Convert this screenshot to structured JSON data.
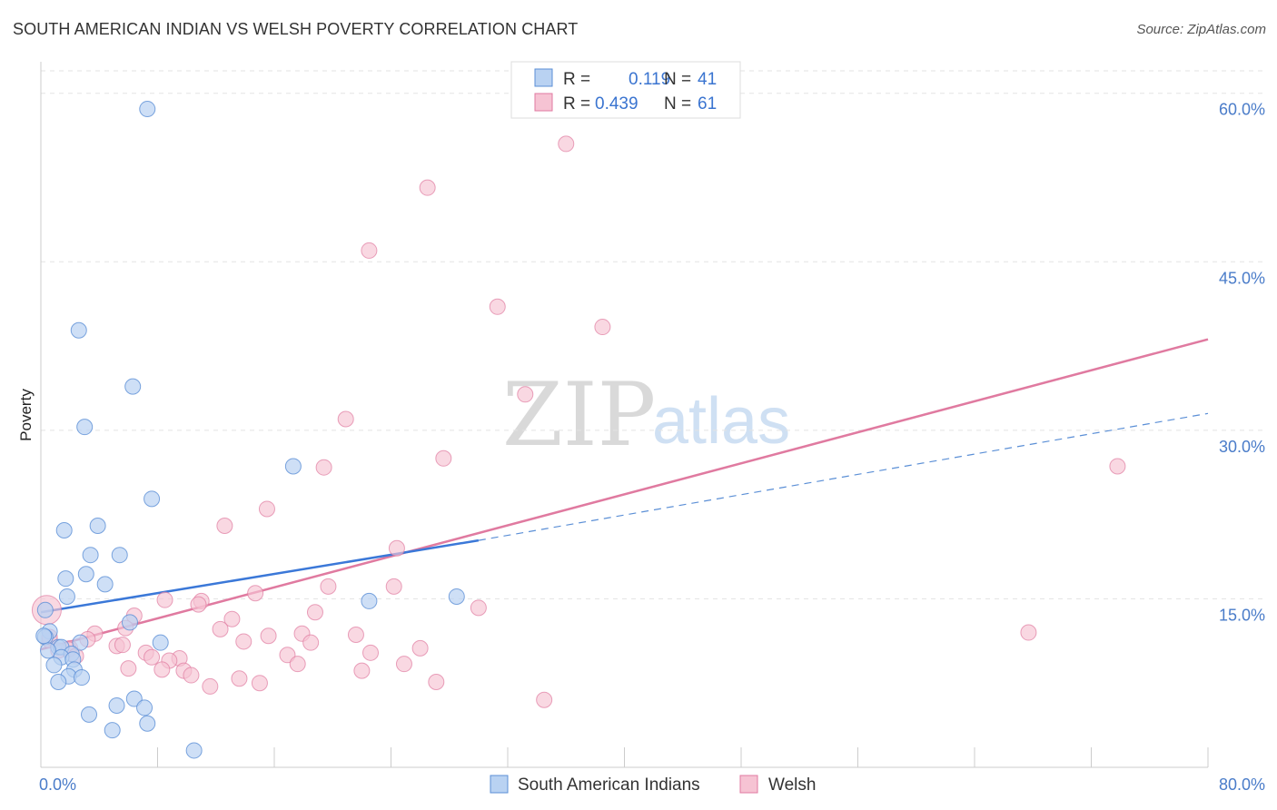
{
  "header": {
    "title": "SOUTH AMERICAN INDIAN VS WELSH POVERTY CORRELATION CHART",
    "source": "Source: ZipAtlas.com"
  },
  "watermark": {
    "zip": "ZIP",
    "atlas": "atlas"
  },
  "legend": {
    "row1": {
      "r_label": "R =",
      "r_value": "0.119",
      "n_label": "N =",
      "n_value": "41"
    },
    "row2": {
      "r_label": "R =",
      "r_value": "0.439",
      "n_label": "N =",
      "n_value": "61"
    }
  },
  "bottom_legend": {
    "series1": "South American Indians",
    "series2": "Welsh"
  },
  "chart_data": {
    "type": "scatter",
    "title": "SOUTH AMERICAN INDIAN VS WELSH POVERTY CORRELATION CHART",
    "xlabel": "",
    "ylabel": "Poverty",
    "xlim": [
      0,
      80
    ],
    "ylim": [
      0,
      62
    ],
    "x_tick_labels": [
      "0.0%",
      "80.0%"
    ],
    "y_ticks": [
      15,
      30,
      45,
      60
    ],
    "y_tick_labels": [
      "15.0%",
      "30.0%",
      "45.0%",
      "60.0%"
    ],
    "grid": true,
    "colors": {
      "blue": "#5b8fd6",
      "pink": "#e07aa0",
      "blue_fill": "#b9d2f2",
      "pink_fill": "#f6c3d3"
    },
    "series": [
      {
        "name": "South American Indians",
        "r": 0.119,
        "n": 41,
        "points": [
          [
            7.3,
            58.6
          ],
          [
            2.6,
            38.9
          ],
          [
            6.3,
            33.9
          ],
          [
            3.0,
            30.3
          ],
          [
            17.3,
            26.8
          ],
          [
            7.6,
            23.9
          ],
          [
            3.9,
            21.5
          ],
          [
            1.6,
            21.1
          ],
          [
            3.4,
            18.9
          ],
          [
            5.4,
            18.9
          ],
          [
            1.7,
            16.8
          ],
          [
            3.1,
            17.2
          ],
          [
            4.4,
            16.3
          ],
          [
            1.8,
            15.2
          ],
          [
            28.5,
            15.2
          ],
          [
            22.5,
            14.8
          ],
          [
            0.3,
            14.0
          ],
          [
            6.1,
            12.9
          ],
          [
            0.6,
            12.1
          ],
          [
            0.3,
            11.6
          ],
          [
            8.2,
            11.1
          ],
          [
            2.7,
            11.1
          ],
          [
            1.2,
            10.7
          ],
          [
            1.4,
            10.7
          ],
          [
            0.5,
            10.4
          ],
          [
            2.1,
            10.1
          ],
          [
            1.4,
            9.8
          ],
          [
            2.2,
            9.6
          ],
          [
            0.9,
            9.1
          ],
          [
            2.3,
            8.7
          ],
          [
            1.9,
            8.1
          ],
          [
            2.8,
            8.0
          ],
          [
            1.2,
            7.6
          ],
          [
            6.4,
            6.1
          ],
          [
            5.2,
            5.5
          ],
          [
            7.1,
            5.3
          ],
          [
            3.3,
            4.7
          ],
          [
            7.3,
            3.9
          ],
          [
            4.9,
            3.3
          ],
          [
            10.5,
            1.5
          ],
          [
            0.2,
            11.7
          ]
        ],
        "trend": {
          "solid": [
            [
              0,
              13.8
            ],
            [
              30,
              20.2
            ]
          ],
          "dashed": [
            [
              30,
              20.2
            ],
            [
              80,
              31.5
            ]
          ]
        }
      },
      {
        "name": "Welsh",
        "r": 0.439,
        "n": 61,
        "points": [
          [
            36.0,
            55.5
          ],
          [
            26.5,
            51.6
          ],
          [
            22.5,
            46.0
          ],
          [
            31.3,
            41.0
          ],
          [
            38.5,
            39.2
          ],
          [
            33.2,
            33.2
          ],
          [
            20.9,
            31.0
          ],
          [
            27.6,
            27.5
          ],
          [
            19.4,
            26.7
          ],
          [
            73.8,
            26.8
          ],
          [
            15.5,
            23.0
          ],
          [
            12.6,
            21.5
          ],
          [
            24.4,
            19.5
          ],
          [
            19.7,
            16.1
          ],
          [
            24.2,
            16.1
          ],
          [
            14.7,
            15.5
          ],
          [
            8.5,
            14.9
          ],
          [
            11.0,
            14.8
          ],
          [
            10.8,
            14.5
          ],
          [
            30.0,
            14.2
          ],
          [
            18.8,
            13.8
          ],
          [
            6.4,
            13.5
          ],
          [
            13.1,
            13.2
          ],
          [
            12.3,
            12.3
          ],
          [
            67.7,
            12.0
          ],
          [
            3.7,
            11.9
          ],
          [
            5.8,
            12.4
          ],
          [
            17.9,
            11.9
          ],
          [
            21.6,
            11.8
          ],
          [
            15.6,
            11.7
          ],
          [
            3.2,
            11.4
          ],
          [
            13.9,
            11.2
          ],
          [
            18.5,
            11.1
          ],
          [
            5.2,
            10.8
          ],
          [
            5.6,
            10.9
          ],
          [
            2.0,
            10.6
          ],
          [
            26.0,
            10.6
          ],
          [
            0.6,
            11.3
          ],
          [
            1.9,
            10.5
          ],
          [
            1.2,
            10.4
          ],
          [
            2.4,
            9.9
          ],
          [
            7.2,
            10.2
          ],
          [
            22.6,
            10.2
          ],
          [
            16.9,
            10.0
          ],
          [
            7.6,
            9.8
          ],
          [
            9.5,
            9.7
          ],
          [
            8.8,
            9.5
          ],
          [
            17.6,
            9.2
          ],
          [
            24.9,
            9.2
          ],
          [
            8.3,
            8.7
          ],
          [
            6.0,
            8.8
          ],
          [
            9.8,
            8.6
          ],
          [
            22.0,
            8.6
          ],
          [
            10.3,
            8.2
          ],
          [
            13.6,
            7.9
          ],
          [
            15.0,
            7.5
          ],
          [
            27.1,
            7.6
          ],
          [
            11.6,
            7.2
          ],
          [
            34.5,
            6.0
          ],
          [
            0.4,
            14.0
          ],
          [
            0.6,
            11.6
          ]
        ],
        "trend": {
          "solid": [
            [
              0,
              10.5
            ],
            [
              80,
              38.1
            ]
          ]
        }
      }
    ]
  }
}
